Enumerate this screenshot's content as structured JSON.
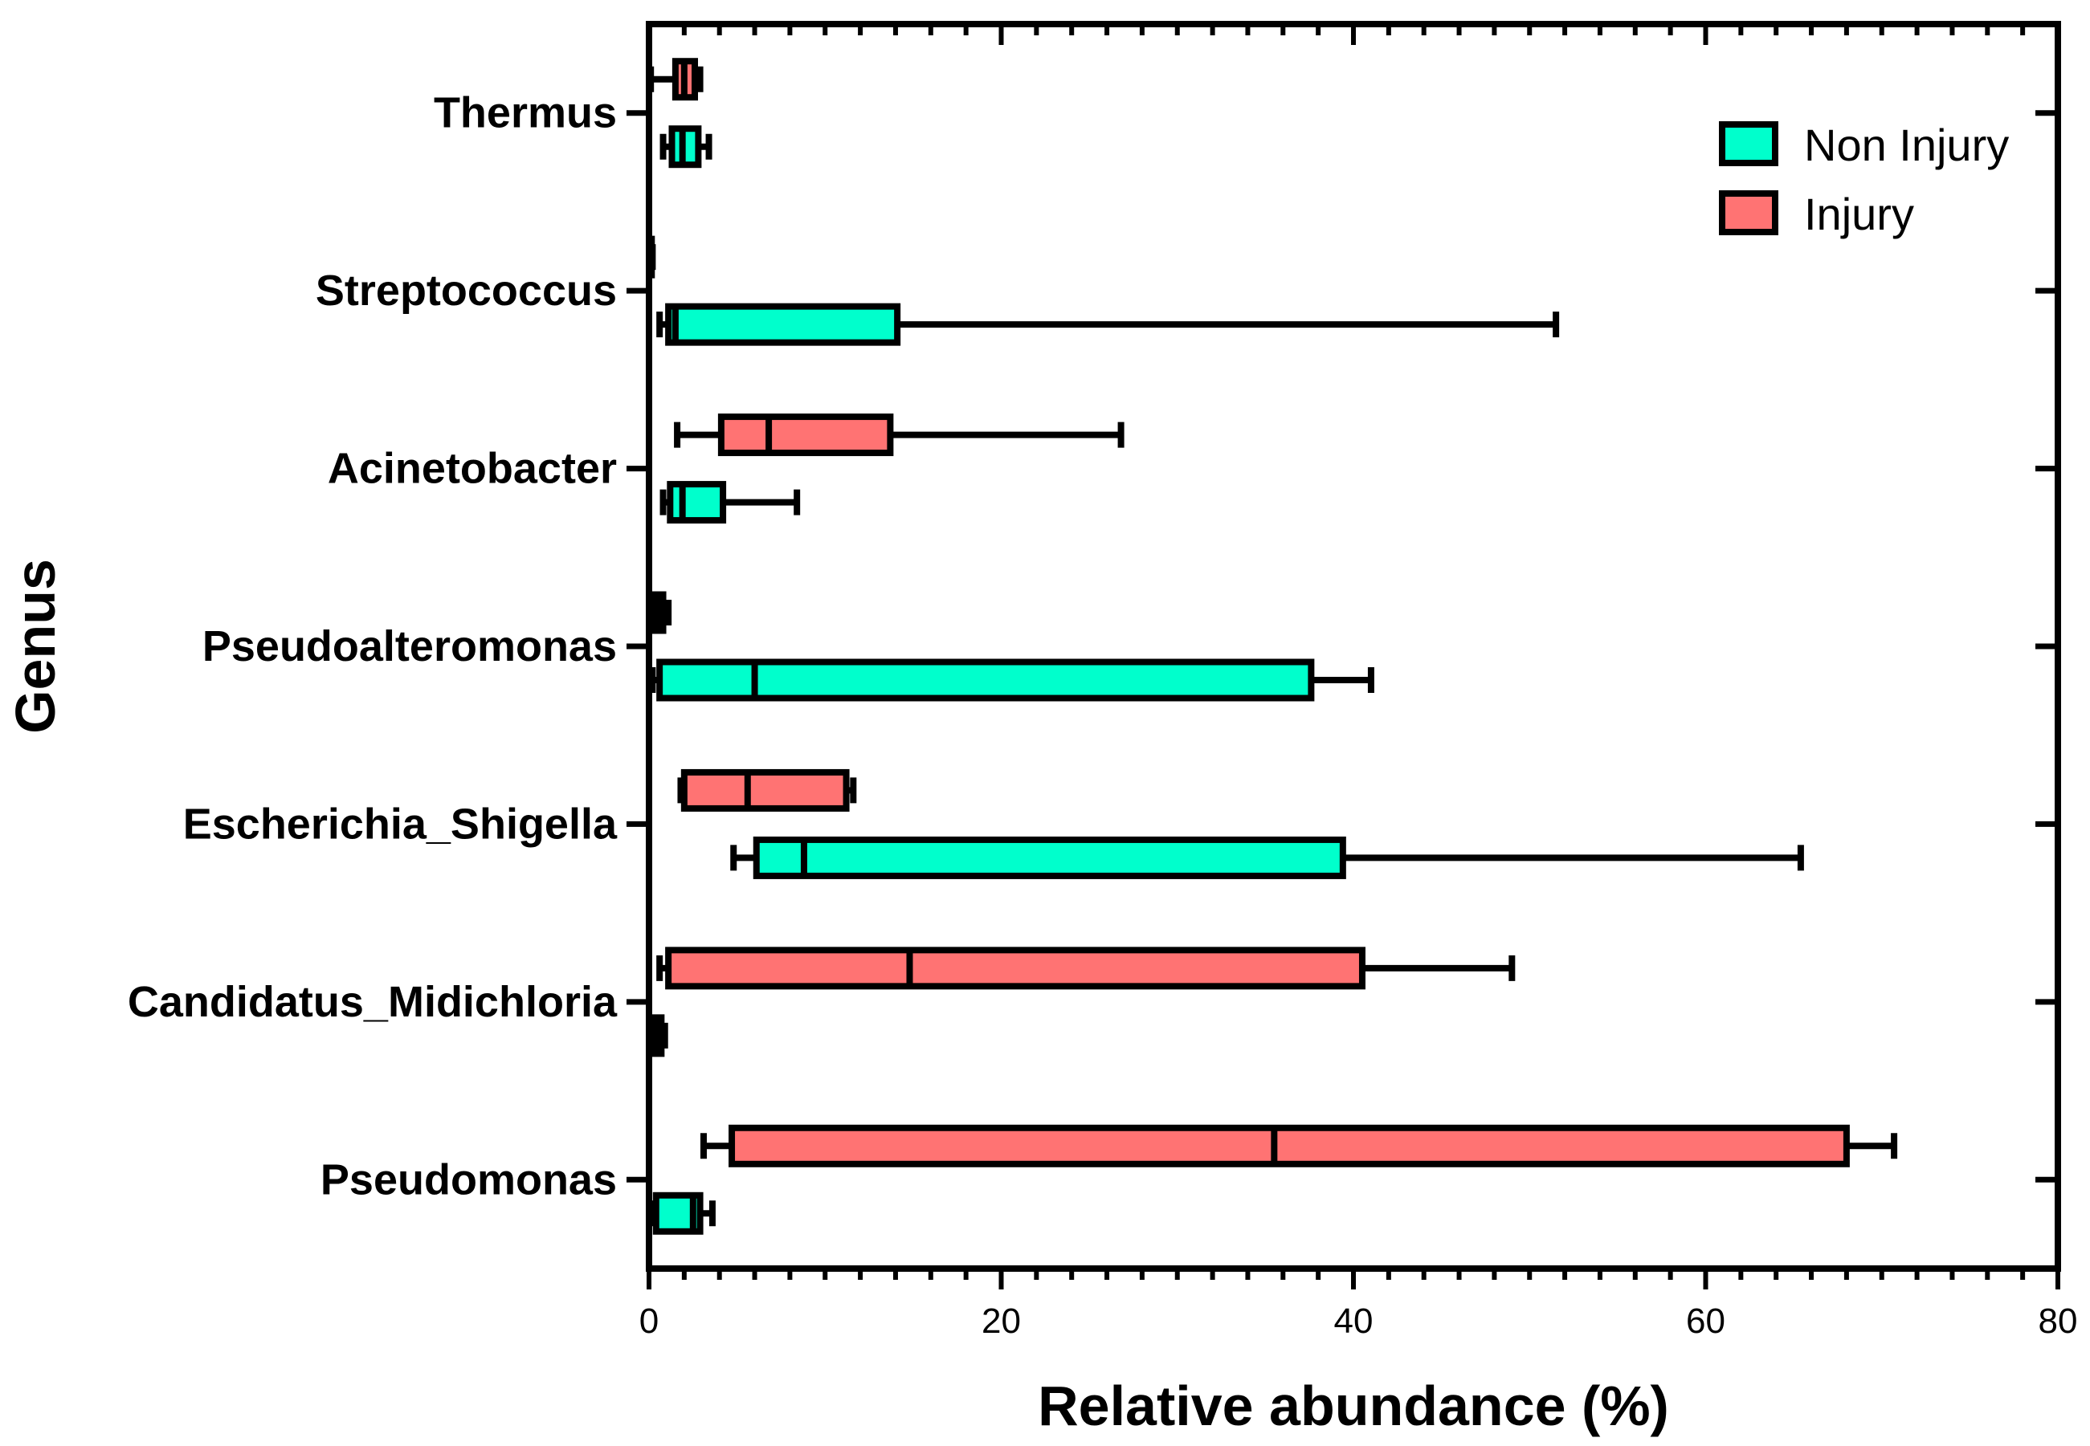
{
  "chart_data": {
    "type": "boxplot",
    "orientation": "horizontal",
    "title": "",
    "xlabel": "Relative abundance (%)",
    "ylabel": "Genus",
    "xlim": [
      0,
      80
    ],
    "xticks": [
      0,
      20,
      40,
      60,
      80
    ],
    "grid": false,
    "legend_position": "top-right",
    "categories": [
      "Thermus",
      "Streptococcus",
      "Acinetobacter",
      "Pseudoalteromonas",
      "Escherichia_Shigella",
      "Candidatus_Midichloria",
      "Pseudomonas"
    ],
    "series": [
      {
        "name": "Injury",
        "color": "#FF7373",
        "boxes": [
          {
            "min": 0.1,
            "q1": 1.5,
            "median": 2.0,
            "q3": 2.6,
            "max": 2.9
          },
          {
            "min": 0.0,
            "q1": 0.05,
            "median": 0.1,
            "q3": 0.15,
            "max": 0.2
          },
          {
            "min": 1.6,
            "q1": 4.1,
            "median": 6.8,
            "q3": 13.7,
            "max": 26.8
          },
          {
            "min": 0.1,
            "q1": 0.2,
            "median": 0.5,
            "q3": 0.8,
            "max": 1.1
          },
          {
            "min": 1.8,
            "q1": 2.0,
            "median": 5.6,
            "q3": 11.2,
            "max": 11.6
          },
          {
            "min": 0.6,
            "q1": 1.1,
            "median": 14.8,
            "q3": 40.5,
            "max": 49.0
          },
          {
            "min": 3.1,
            "q1": 4.7,
            "median": 35.5,
            "q3": 68.0,
            "max": 70.7
          }
        ]
      },
      {
        "name": "Non Injury",
        "color": "#00FFCC",
        "boxes": [
          {
            "min": 0.8,
            "q1": 1.3,
            "median": 1.9,
            "q3": 2.8,
            "max": 3.4
          },
          {
            "min": 0.6,
            "q1": 1.1,
            "median": 1.5,
            "q3": 14.1,
            "max": 51.5
          },
          {
            "min": 0.8,
            "q1": 1.2,
            "median": 1.9,
            "q3": 4.2,
            "max": 8.4
          },
          {
            "min": 0.2,
            "q1": 0.6,
            "median": 6.0,
            "q3": 37.6,
            "max": 41.0
          },
          {
            "min": 4.8,
            "q1": 6.1,
            "median": 8.8,
            "q3": 39.4,
            "max": 65.4
          },
          {
            "min": 0.05,
            "q1": 0.1,
            "median": 0.4,
            "q3": 0.7,
            "max": 0.9
          },
          {
            "min": 0.1,
            "q1": 0.4,
            "median": 2.5,
            "q3": 2.9,
            "max": 3.6
          }
        ]
      }
    ],
    "legend": [
      {
        "label": "Non Injury",
        "color": "#00FFCC"
      },
      {
        "label": "Injury",
        "color": "#FF7373"
      }
    ]
  }
}
